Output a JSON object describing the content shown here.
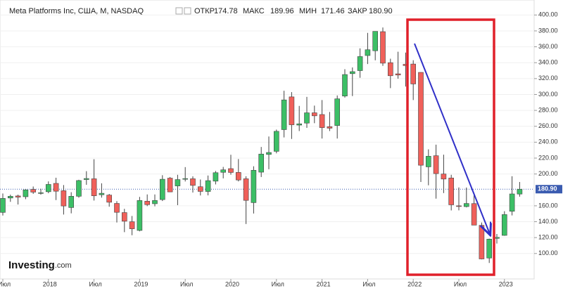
{
  "header": {
    "title": "Meta Platforms Inc, США, М, NASDAQ",
    "open_label": "ОТКР",
    "open": "174.78",
    "high_label": "МАКС",
    "high": "189.96",
    "low_label": "МИН",
    "low": "171.46",
    "close_label": "ЗАКР",
    "close": "180.90"
  },
  "logo": {
    "name": "Investing",
    "suffix": ".com"
  },
  "chart_data": {
    "type": "candlestick",
    "categories": [
      "Июл",
      null,
      null,
      null,
      null,
      null,
      "2018",
      null,
      null,
      null,
      null,
      null,
      "Июл",
      null,
      null,
      null,
      null,
      null,
      "2019",
      null,
      null,
      null,
      null,
      null,
      "Июл",
      null,
      null,
      null,
      null,
      null,
      "2020",
      null,
      null,
      null,
      null,
      null,
      "Июл",
      null,
      null,
      null,
      null,
      null,
      "2021",
      null,
      null,
      null,
      null,
      null,
      "Июл",
      null,
      null,
      null,
      null,
      null,
      "2022",
      null,
      null,
      null,
      null,
      null,
      "Июл",
      null,
      null,
      null,
      null,
      null,
      "2023",
      null,
      null
    ],
    "open": [
      151.7,
      169.8,
      172.4,
      171.4,
      180.6,
      176.0,
      177.7,
      188.2,
      179.0,
      157.8,
      172.0,
      193.0,
      194.0,
      173.9,
      173.5,
      163.0,
      151.5,
      140.0,
      129.0,
      165.8,
      162.6,
      167.8,
      194.8,
      185.0,
      194.0,
      194.0,
      184.0,
      178.0,
      191.0,
      202.1,
      206.75,
      202.0,
      194.0,
      164.0,
      202.3,
      224.6,
      228.5,
      255.8,
      297.0,
      261.5,
      264.0,
      277.0,
      274.8,
      259.5,
      261.0,
      298.0,
      326.2,
      330.0,
      349.0,
      355.0,
      379.0,
      340.0,
      326.0,
      338.0,
      338.3,
      327.8,
      209.0,
      223.0,
      200.0,
      195.0,
      160.0,
      159.0,
      162.8,
      135.5,
      94.3,
      119.0,
      122.8,
      153.1,
      174.78
    ],
    "high": [
      175.5,
      174.0,
      174.0,
      180.8,
      184.25,
      181.5,
      190.7,
      195.3,
      186.1,
      177.1,
      192.7,
      203.55,
      218.6,
      188.3,
      174.9,
      165.9,
      156.2,
      147.2,
      171.2,
      174.3,
      174.3,
      198.5,
      196.2,
      199.0,
      208.66,
      197.0,
      193.1,
      198.1,
      203.8,
      208.9,
      224.2,
      218.8,
      197.2,
      209.7,
      234.0,
      247.2,
      255.85,
      304.7,
      303.0,
      285.6,
      297.0,
      286.0,
      293.0,
      278.0,
      298.8,
      331.8,
      334.0,
      358.0,
      377.5,
      377.5,
      384.3,
      345.0,
      353.8,
      352.7,
      343.1,
      328.0,
      231.0,
      236.9,
      224.3,
      199.0,
      183.1,
      183.0,
      176.0,
      139.0,
      118.7,
      124.6,
      153.2,
      197.2,
      189.96
    ],
    "low": [
      147.8,
      165.0,
      161.6,
      168.3,
      175.0,
      174.0,
      175.8,
      167.2,
      149.0,
      150.5,
      170.2,
      186.4,
      166.6,
      170.3,
      158.9,
      139.0,
      126.85,
      123.0,
      127.9,
      159.6,
      159.3,
      166.0,
      177.2,
      160.8,
      190.6,
      176.7,
      173.0,
      173.1,
      186.9,
      194.5,
      199.1,
      190.7,
      137.1,
      150.3,
      196.2,
      206.0,
      226.0,
      246.0,
      244.1,
      254.0,
      258.0,
      263.9,
      244.6,
      254.0,
      244.6,
      296.1,
      298.0,
      321.0,
      338.3,
      343.0,
      336.0,
      308.0,
      319.9,
      310.0,
      293.0,
      190.0,
      185.8,
      169.0,
      176.0,
      154.2,
      154.3,
      158.0,
      135.7,
      92.6,
      88.1,
      112.5,
      122.3,
      147.9,
      171.46
    ],
    "close": [
      169.3,
      171.97,
      170.87,
      180.06,
      177.18,
      176.46,
      186.89,
      178.32,
      159.79,
      172.0,
      191.78,
      194.32,
      172.58,
      175.73,
      164.46,
      151.79,
      140.61,
      131.09,
      166.69,
      161.45,
      166.69,
      193.4,
      177.47,
      193.0,
      194.23,
      185.67,
      178.08,
      191.65,
      201.64,
      205.25,
      201.91,
      192.47,
      166.8,
      204.71,
      225.09,
      227.07,
      253.67,
      293.2,
      261.9,
      263.11,
      276.97,
      273.16,
      258.33,
      257.62,
      294.53,
      325.08,
      328.73,
      347.71,
      356.3,
      379.38,
      339.39,
      323.57,
      324.46,
      336.35,
      313.26,
      211.03,
      222.36,
      200.47,
      193.64,
      161.25,
      159.1,
      162.93,
      135.68,
      93.16,
      118.1,
      120.34,
      148.97,
      174.94,
      180.9
    ],
    "up_color": "#3cbf66",
    "down_color": "#f0605a",
    "ylim": [
      68,
      410
    ],
    "yticks": [
      {
        "value": 100,
        "label": "100.00"
      },
      {
        "value": 120,
        "label": "120.00"
      },
      {
        "value": 140,
        "label": "140.00"
      },
      {
        "value": 160,
        "label": "160.00"
      },
      {
        "value": 200,
        "label": "200.00"
      },
      {
        "value": 220,
        "label": "220.00"
      },
      {
        "value": 240,
        "label": "240.00"
      },
      {
        "value": 260,
        "label": "260.00"
      },
      {
        "value": 280,
        "label": "280.00"
      },
      {
        "value": 300,
        "label": "300.00"
      },
      {
        "value": 320,
        "label": "320.00"
      },
      {
        "value": 340,
        "label": "340.00"
      },
      {
        "value": 360,
        "label": "360.00"
      },
      {
        "value": 380,
        "label": "380.00"
      },
      {
        "value": 400,
        "label": "400.00"
      }
    ],
    "last_price": {
      "value": 180.9,
      "label": "180.90"
    },
    "grid": true
  }
}
